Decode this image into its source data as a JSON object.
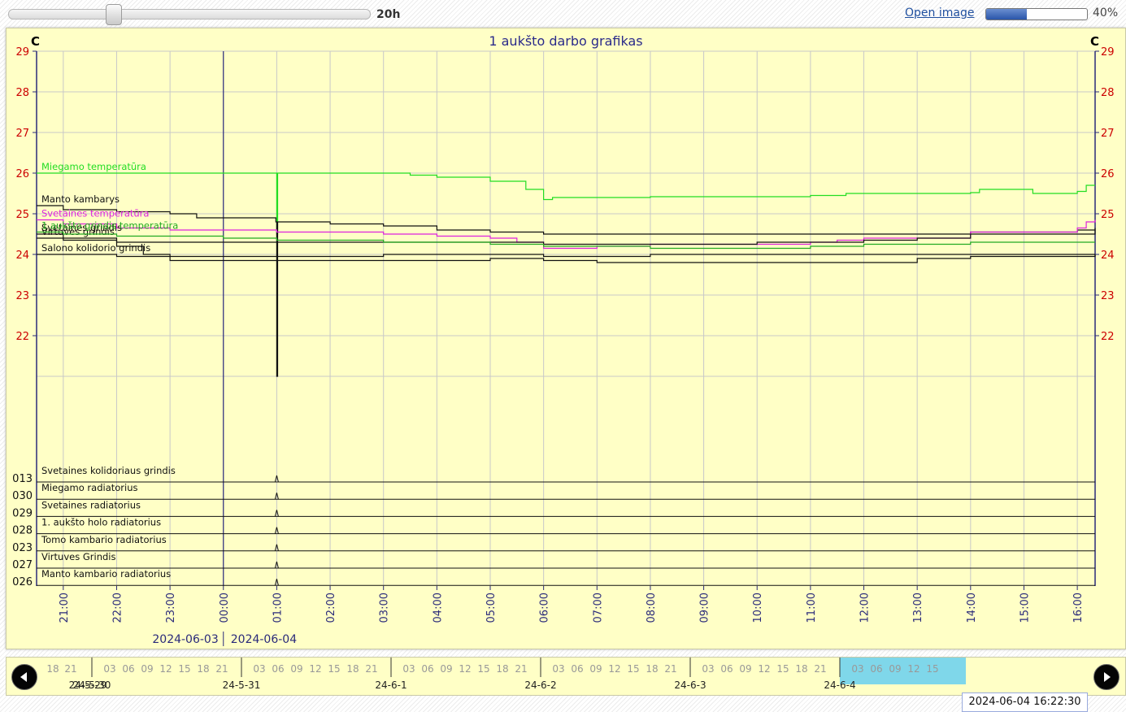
{
  "toolbar": {
    "slider_value_label": "20h",
    "slider_fraction": 0.29,
    "open_image_label": "Open image",
    "progress_fraction": 0.4,
    "progress_label": "40%"
  },
  "colors": {
    "background": "#ffffc6",
    "grid": "#c8c8c8",
    "axis": "#2a2a7a",
    "title": "#2a2a8a",
    "left_ticks": "#cc0000",
    "timeline_highlight": "#7fd7ea"
  },
  "chart_data": {
    "type": "line",
    "title": "1 aukšto darbo grafikas",
    "y_unit_left": "C",
    "y_unit_right": "C",
    "ylim": [
      21,
      29
    ],
    "yticks": [
      22,
      23,
      24,
      25,
      26,
      27,
      28,
      29
    ],
    "x_range": [
      "2024-06-03 20:30",
      "2024-06-04 16:20"
    ],
    "x_ticks": [
      "21:00",
      "22:00",
      "23:00",
      "00:00",
      "01:00",
      "02:00",
      "03:00",
      "04:00",
      "05:00",
      "06:00",
      "07:00",
      "08:00",
      "09:00",
      "10:00",
      "11:00",
      "12:00",
      "13:00",
      "14:00",
      "15:00",
      "16:00"
    ],
    "date_labels": [
      "2024-06-03",
      "2024-06-04"
    ],
    "date_boundary": "00:00",
    "grid": true,
    "temperature_series": [
      {
        "name": "Miegamo temperatūra",
        "color": "#22dd22",
        "points": [
          [
            "20:30",
            26.0
          ],
          [
            "00:30",
            26.0
          ],
          [
            "00:59",
            26.0
          ],
          [
            "01:00",
            24.5
          ],
          [
            "01:01",
            26.0
          ],
          [
            "02:00",
            26.0
          ],
          [
            "03:30",
            25.95
          ],
          [
            "04:00",
            25.9
          ],
          [
            "05:00",
            25.8
          ],
          [
            "05:20",
            25.8
          ],
          [
            "05:40",
            25.6
          ],
          [
            "06:00",
            25.35
          ],
          [
            "06:10",
            25.4
          ],
          [
            "07:00",
            25.4
          ],
          [
            "08:00",
            25.42
          ],
          [
            "09:00",
            25.42
          ],
          [
            "10:00",
            25.42
          ],
          [
            "11:00",
            25.45
          ],
          [
            "11:40",
            25.5
          ],
          [
            "13:00",
            25.5
          ],
          [
            "14:00",
            25.52
          ],
          [
            "14:10",
            25.6
          ],
          [
            "15:00",
            25.6
          ],
          [
            "15:10",
            25.5
          ],
          [
            "16:00",
            25.55
          ],
          [
            "16:10",
            25.7
          ],
          [
            "16:20",
            25.7
          ]
        ]
      },
      {
        "name": "Manto kambarys",
        "color": "#111111",
        "points": [
          [
            "20:30",
            25.2
          ],
          [
            "21:00",
            25.1
          ],
          [
            "22:00",
            25.05
          ],
          [
            "23:00",
            25.0
          ],
          [
            "23:30",
            24.9
          ],
          [
            "00:30",
            24.9
          ],
          [
            "00:59",
            24.8
          ],
          [
            "01:00",
            21.0
          ],
          [
            "01:01",
            24.8
          ],
          [
            "02:00",
            24.75
          ],
          [
            "03:00",
            24.7
          ],
          [
            "04:00",
            24.6
          ],
          [
            "05:00",
            24.55
          ],
          [
            "06:00",
            24.5
          ],
          [
            "08:00",
            24.5
          ],
          [
            "10:00",
            24.5
          ],
          [
            "12:00",
            24.5
          ],
          [
            "13:30",
            24.5
          ],
          [
            "14:00",
            24.55
          ],
          [
            "16:00",
            24.6
          ],
          [
            "16:20",
            24.65
          ]
        ]
      },
      {
        "name": "Svetaines temperatūra",
        "color": "#dd22dd",
        "points": [
          [
            "20:30",
            24.85
          ],
          [
            "21:00",
            24.75
          ],
          [
            "22:00",
            24.65
          ],
          [
            "23:00",
            24.6
          ],
          [
            "00:00",
            24.6
          ],
          [
            "01:00",
            24.55
          ],
          [
            "03:00",
            24.5
          ],
          [
            "04:00",
            24.45
          ],
          [
            "05:00",
            24.4
          ],
          [
            "05:30",
            24.3
          ],
          [
            "06:00",
            24.15
          ],
          [
            "06:30",
            24.15
          ],
          [
            "07:00",
            24.2
          ],
          [
            "08:00",
            24.25
          ],
          [
            "09:00",
            24.25
          ],
          [
            "10:00",
            24.25
          ],
          [
            "11:00",
            24.3
          ],
          [
            "11:30",
            24.35
          ],
          [
            "12:00",
            24.4
          ],
          [
            "14:00",
            24.55
          ],
          [
            "15:00",
            24.55
          ],
          [
            "16:00",
            24.65
          ],
          [
            "16:10",
            24.8
          ],
          [
            "16:20",
            24.85
          ]
        ]
      },
      {
        "name": "Virtuves grindis",
        "color": "#111111",
        "points": [
          [
            "20:30",
            24.4
          ],
          [
            "21:00",
            24.35
          ],
          [
            "22:00",
            24.3
          ],
          [
            "23:00",
            24.3
          ],
          [
            "00:00",
            24.3
          ],
          [
            "01:00",
            24.3
          ],
          [
            "03:00",
            24.3
          ],
          [
            "05:00",
            24.3
          ],
          [
            "06:00",
            24.25
          ],
          [
            "08:00",
            24.25
          ],
          [
            "10:00",
            24.3
          ],
          [
            "12:00",
            24.35
          ],
          [
            "13:00",
            24.4
          ],
          [
            "14:00",
            24.5
          ],
          [
            "16:20",
            24.6
          ]
        ]
      },
      {
        "name": "Svetaines grindis",
        "color": "#111111",
        "points": [
          [
            "20:30",
            24.5
          ],
          [
            "21:00",
            24.4
          ],
          [
            "22:00",
            24.2
          ],
          [
            "22:30",
            24.0
          ],
          [
            "23:00",
            23.85
          ],
          [
            "00:00",
            23.85
          ],
          [
            "01:00",
            23.85
          ],
          [
            "03:00",
            23.85
          ],
          [
            "05:00",
            23.9
          ],
          [
            "06:00",
            23.85
          ],
          [
            "07:00",
            23.8
          ],
          [
            "08:00",
            23.8
          ],
          [
            "09:00",
            23.8
          ],
          [
            "10:00",
            23.8
          ],
          [
            "11:00",
            23.8
          ],
          [
            "12:00",
            23.8
          ],
          [
            "13:00",
            23.9
          ],
          [
            "14:00",
            23.95
          ],
          [
            "16:20",
            24.0
          ]
        ]
      },
      {
        "name": "1 aukšto grindis temperatūra",
        "color": "#22aa22",
        "points": [
          [
            "20:30",
            24.55
          ],
          [
            "21:00",
            24.5
          ],
          [
            "22:00",
            24.45
          ],
          [
            "23:00",
            24.45
          ],
          [
            "00:00",
            24.4
          ],
          [
            "01:00",
            24.35
          ],
          [
            "02:00",
            24.35
          ],
          [
            "03:00",
            24.3
          ],
          [
            "04:00",
            24.3
          ],
          [
            "05:00",
            24.25
          ],
          [
            "06:00",
            24.2
          ],
          [
            "08:00",
            24.15
          ],
          [
            "10:00",
            24.15
          ],
          [
            "11:00",
            24.2
          ],
          [
            "12:00",
            24.25
          ],
          [
            "14:00",
            24.3
          ],
          [
            "16:20",
            24.3
          ]
        ]
      },
      {
        "name": "Salono kolidorio grindis",
        "color": "#111111",
        "points": [
          [
            "20:30",
            24.0
          ],
          [
            "21:00",
            24.0
          ],
          [
            "22:00",
            23.95
          ],
          [
            "23:00",
            23.95
          ],
          [
            "00:00",
            23.95
          ],
          [
            "01:00",
            23.95
          ],
          [
            "03:00",
            24.0
          ],
          [
            "04:00",
            24.0
          ],
          [
            "05:00",
            24.0
          ],
          [
            "06:00",
            23.95
          ],
          [
            "08:00",
            24.0
          ],
          [
            "10:00",
            24.0
          ],
          [
            "12:00",
            24.0
          ],
          [
            "14:00",
            24.0
          ],
          [
            "16:20",
            24.0
          ]
        ]
      }
    ],
    "digital_series": [
      {
        "id": "013",
        "name": "Svetaines kolidoriaus grindis"
      },
      {
        "id": "030",
        "name": "Miegamo radiatorius"
      },
      {
        "id": "029",
        "name": "Svetaines radiatorius"
      },
      {
        "id": "028",
        "name": "1. aukšto holo radiatorius"
      },
      {
        "id": "023",
        "name": "Tomo kambario radiatorius"
      },
      {
        "id": "027",
        "name": "Virtuves Grindis"
      },
      {
        "id": "026",
        "name": "Manto kambario radiatorius"
      }
    ],
    "digital_pulse_at": "01:00"
  },
  "timeline": {
    "hour_labels": [
      "18",
      "21",
      "03",
      "06",
      "09",
      "12",
      "15",
      "18",
      "21"
    ],
    "days": [
      {
        "label": "24-5-29",
        "hours": [
          "18",
          "21"
        ]
      },
      {
        "label": "24-5-30",
        "hours": [
          "03",
          "06",
          "09",
          "12",
          "15",
          "18",
          "21"
        ]
      },
      {
        "label": "24-5-31",
        "hours": [
          "03",
          "06",
          "09",
          "12",
          "15",
          "18",
          "21"
        ]
      },
      {
        "label": "24-6-1",
        "hours": [
          "03",
          "06",
          "09",
          "12",
          "15",
          "18",
          "21"
        ]
      },
      {
        "label": "24-6-2",
        "hours": [
          "03",
          "06",
          "09",
          "12",
          "15",
          "18",
          "21"
        ]
      },
      {
        "label": "24-6-3",
        "hours": [
          "03",
          "06",
          "09",
          "12",
          "15",
          "18",
          "21"
        ]
      },
      {
        "label": "24-6-4",
        "hours": [
          "03",
          "06",
          "09",
          "12",
          "15"
        ]
      }
    ],
    "cursor_tooltip": "2024-06-04 16:22:30"
  }
}
